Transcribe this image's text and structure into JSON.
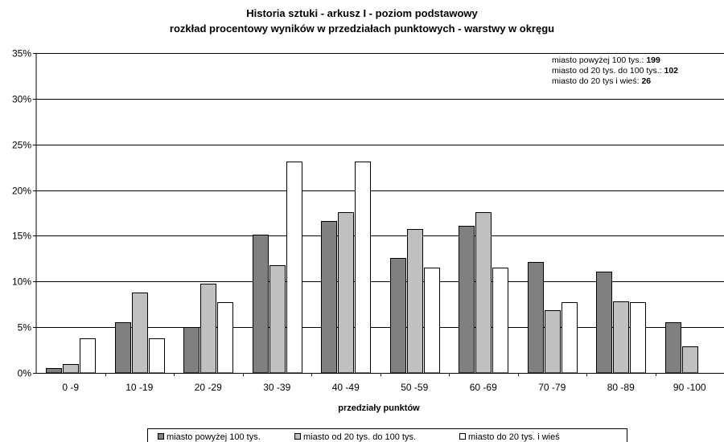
{
  "chart_data": {
    "type": "bar",
    "title": "Historia sztuki - arkusz I - poziom podstawowy",
    "subtitle": "rozkład procentowy wyników w przedziałach punktowych - warstwy w okręgu",
    "xlabel": "przedziały punktów",
    "ylabel": "",
    "ylim": [
      0,
      35
    ],
    "yticks": [
      "0%",
      "5%",
      "10%",
      "15%",
      "20%",
      "25%",
      "30%",
      "35%"
    ],
    "grid": true,
    "legend_position": "bottom",
    "categories": [
      "0 -9",
      "10 -19",
      "20 -29",
      "30 -39",
      "40 -49",
      "50 -59",
      "60 -69",
      "70 -79",
      "80 -89",
      "90 -100"
    ],
    "series": [
      {
        "name": "miasto powyżej 100 tys.",
        "color": "#808080",
        "values": [
          0.5,
          5.5,
          5.0,
          15.1,
          16.6,
          12.6,
          16.1,
          12.1,
          11.1,
          5.5
        ]
      },
      {
        "name": "miasto od 20 tys. do 100 tys.",
        "color": "#c0c0c0",
        "values": [
          1.0,
          8.8,
          9.8,
          11.8,
          17.6,
          15.7,
          17.6,
          6.9,
          7.8,
          2.9
        ]
      },
      {
        "name": "miasto do 20 tys. i wieś",
        "color": "#ffffff",
        "values": [
          3.8,
          3.8,
          7.7,
          23.1,
          23.1,
          11.5,
          11.5,
          7.7,
          7.7,
          0
        ]
      }
    ],
    "annotation": [
      {
        "label": "miasto powyżej 100 tys.:",
        "value": "199"
      },
      {
        "label": "miasto od 20 tys. do 100 tys.:",
        "value": "102"
      },
      {
        "label": "miasto do 20 tys i wieś:",
        "value": "26"
      }
    ]
  }
}
